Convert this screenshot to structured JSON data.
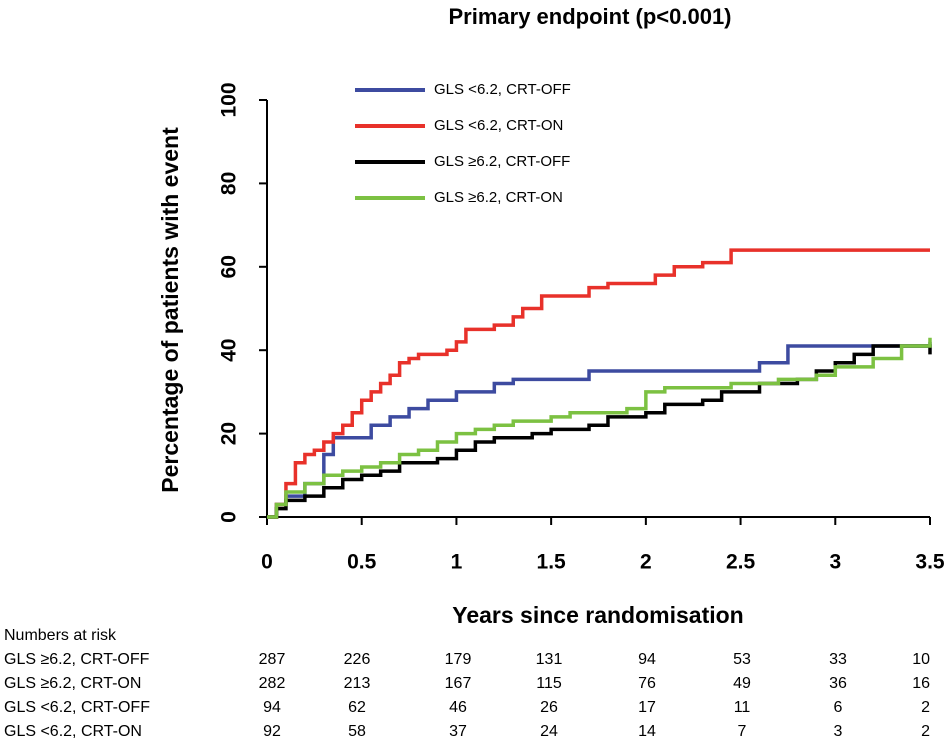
{
  "chart_data": {
    "type": "line",
    "step": true,
    "title": "Primary endpoint (p<0.001)",
    "x_label": "Years since randomisation",
    "y_label": "Percentage of patients with event",
    "xlim": [
      0,
      3.5
    ],
    "xticks": [
      0,
      0.5,
      1,
      1.5,
      2,
      2.5,
      3,
      3.5
    ],
    "ylim": [
      0,
      100
    ],
    "yticks": [
      0,
      20,
      40,
      60,
      80,
      100
    ],
    "legend": "top-left",
    "series": [
      {
        "name": "GLS <6.2, CRT-OFF",
        "color": "#3d4ba0",
        "x": [
          0,
          0.05,
          0.1,
          0.2,
          0.3,
          0.35,
          0.5,
          0.55,
          0.65,
          0.75,
          0.85,
          1.0,
          1.2,
          1.3,
          1.7,
          2.6,
          2.75,
          3.5
        ],
        "values": [
          0,
          3,
          5,
          8,
          15,
          19,
          19,
          22,
          24,
          26,
          28,
          30,
          32,
          33,
          35,
          37,
          41,
          42
        ]
      },
      {
        "name": "GLS <6.2, CRT-ON",
        "color": "#e8312a",
        "x": [
          0,
          0.05,
          0.1,
          0.15,
          0.2,
          0.25,
          0.3,
          0.35,
          0.4,
          0.45,
          0.5,
          0.55,
          0.6,
          0.65,
          0.7,
          0.75,
          0.8,
          0.95,
          1.0,
          1.05,
          1.2,
          1.3,
          1.35,
          1.45,
          1.7,
          1.8,
          2.05,
          2.15,
          2.3,
          2.45,
          3.5
        ],
        "values": [
          0,
          3,
          8,
          13,
          15,
          16,
          18,
          20,
          22,
          25,
          28,
          30,
          32,
          34,
          37,
          38,
          39,
          40,
          42,
          45,
          46,
          48,
          50,
          53,
          55,
          56,
          58,
          60,
          61,
          64,
          64
        ]
      },
      {
        "name": "GLS ≥6.2, CRT-OFF",
        "color": "#000000",
        "x": [
          0,
          0.05,
          0.1,
          0.2,
          0.3,
          0.4,
          0.5,
          0.6,
          0.7,
          0.9,
          1.0,
          1.1,
          1.2,
          1.4,
          1.5,
          1.7,
          1.8,
          2.0,
          2.1,
          2.3,
          2.4,
          2.6,
          2.8,
          2.9,
          3.0,
          3.1,
          3.2,
          3.4,
          3.5
        ],
        "values": [
          0,
          2,
          4,
          5,
          7,
          9,
          10,
          11,
          13,
          14,
          16,
          18,
          19,
          20,
          21,
          22,
          24,
          25,
          27,
          28,
          30,
          32,
          33,
          35,
          37,
          39,
          41,
          41,
          39
        ]
      },
      {
        "name": "GLS ≥6.2, CRT-ON",
        "color": "#7cc142",
        "x": [
          0,
          0.05,
          0.1,
          0.2,
          0.3,
          0.4,
          0.5,
          0.6,
          0.7,
          0.8,
          0.9,
          1.0,
          1.1,
          1.2,
          1.3,
          1.5,
          1.6,
          1.9,
          2.0,
          2.1,
          2.45,
          2.7,
          2.9,
          3.0,
          3.2,
          3.35,
          3.5
        ],
        "values": [
          0,
          3,
          6,
          8,
          10,
          11,
          12,
          13,
          15,
          16,
          18,
          20,
          21,
          22,
          23,
          24,
          25,
          26,
          30,
          31,
          32,
          33,
          34,
          36,
          38,
          41,
          43
        ]
      }
    ]
  },
  "risk_table": {
    "title": "Numbers at risk",
    "rows": [
      {
        "label": "GLS ≥6.2, CRT-OFF",
        "values": [
          287,
          226,
          179,
          131,
          94,
          53,
          33,
          10
        ]
      },
      {
        "label": "GLS ≥6.2, CRT-ON",
        "values": [
          282,
          213,
          167,
          115,
          76,
          49,
          36,
          16
        ]
      },
      {
        "label": "GLS <6.2, CRT-OFF",
        "values": [
          94,
          62,
          46,
          26,
          17,
          11,
          6,
          2
        ]
      },
      {
        "label": "GLS <6.2, CRT-ON",
        "values": [
          92,
          58,
          37,
          24,
          14,
          7,
          3,
          2
        ]
      }
    ]
  }
}
